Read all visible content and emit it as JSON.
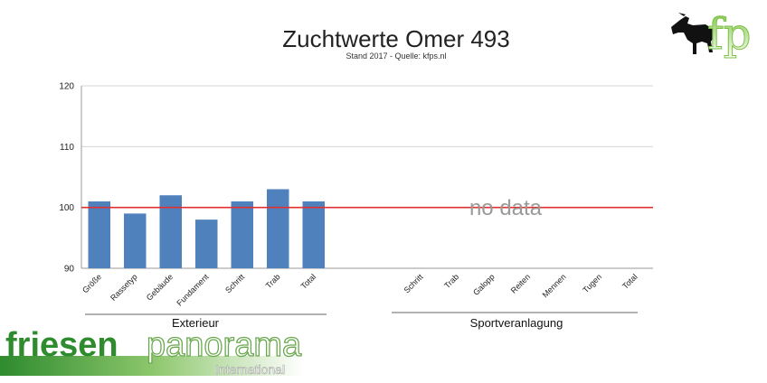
{
  "chart_data": {
    "type": "bar",
    "title": "Zuchtwerte Omer 493",
    "subtitle": "Stand 2017 - Quelle: kfps.nl",
    "ylim": [
      90,
      120
    ],
    "yticks": [
      "90",
      "100",
      "110",
      "120"
    ],
    "reference_line": 100,
    "reference_color": "#e03030",
    "bar_color": "#4f81bd",
    "grid": true,
    "groups": [
      {
        "name": "Exterieur",
        "categories": [
          "Größe",
          "Rassetyp",
          "Gebäude",
          "Fundament",
          "Schritt",
          "Trab",
          "Total"
        ],
        "values": [
          101,
          99,
          102,
          98,
          101,
          103,
          101
        ]
      },
      {
        "name": "Sportveranlagung",
        "categories": [
          "Schritt",
          "Trab",
          "Galopp",
          "Reiten",
          "Mennen",
          "Tugen",
          "Total"
        ],
        "values": [],
        "note": "no data"
      }
    ]
  },
  "branding": {
    "friesen": "friesen",
    "panorama": "panorama",
    "international": "International",
    "logo_letters": "fp",
    "logo_colors": {
      "green": "#7cc242",
      "black": "#111111"
    }
  }
}
